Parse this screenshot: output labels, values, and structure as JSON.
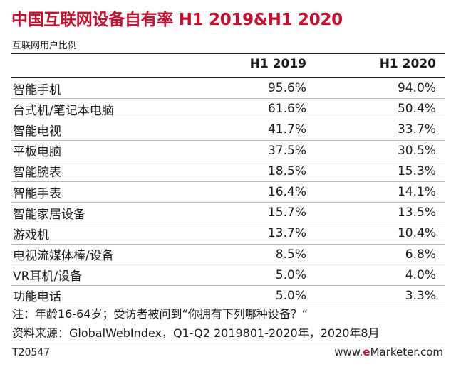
{
  "title": "中国互联网设备自有率 H1 2019&H1 2020",
  "subtitle": "互联网用户比例",
  "columns": [
    "H1 2019",
    "H1 2020"
  ],
  "rows": [
    {
      "label": "智能手机",
      "h1_2019": "95.6%",
      "h1_2020": "94.0%"
    },
    {
      "label": "台式机/笔记本电脑",
      "h1_2019": "61.6%",
      "h1_2020": "50.4%"
    },
    {
      "label": "智能电视",
      "h1_2019": "41.7%",
      "h1_2020": "33.7%"
    },
    {
      "label": "平板电脑",
      "h1_2019": "37.5%",
      "h1_2020": "30.5%"
    },
    {
      "label": "智能腕表",
      "h1_2019": "18.5%",
      "h1_2020": "15.3%"
    },
    {
      "label": "智能手表",
      "h1_2019": "16.4%",
      "h1_2020": "14.1%"
    },
    {
      "label": "智能家居设备",
      "h1_2019": "15.7%",
      "h1_2020": "13.5%"
    },
    {
      "label": "游戏机",
      "h1_2019": "13.7%",
      "h1_2020": "10.4%"
    },
    {
      "label": "电视流媒体棒/设备",
      "h1_2019": "8.5%",
      "h1_2020": "6.8%"
    },
    {
      "label": "VR耳机/设备",
      "h1_2019": "5.0%",
      "h1_2020": "4.0%"
    },
    {
      "label": "功能电话",
      "h1_2019": "5.0%",
      "h1_2020": "3.3%"
    }
  ],
  "note": "注：年龄16-64岁；受访者被问到“你拥有下列哪种设备？“",
  "source": "资料来源：GlobalWebIndex，Q1-Q2 2019801-2020年，2020年8月",
  "footer": {
    "id": "T20547",
    "brand_prefix": "www.",
    "brand_e": "e",
    "brand_rest": "Marketer",
    "brand_suffix": ".com"
  },
  "colors": {
    "accent": "#c8102e",
    "text": "#1a1a1a",
    "rule": "#8a8a8a"
  }
}
